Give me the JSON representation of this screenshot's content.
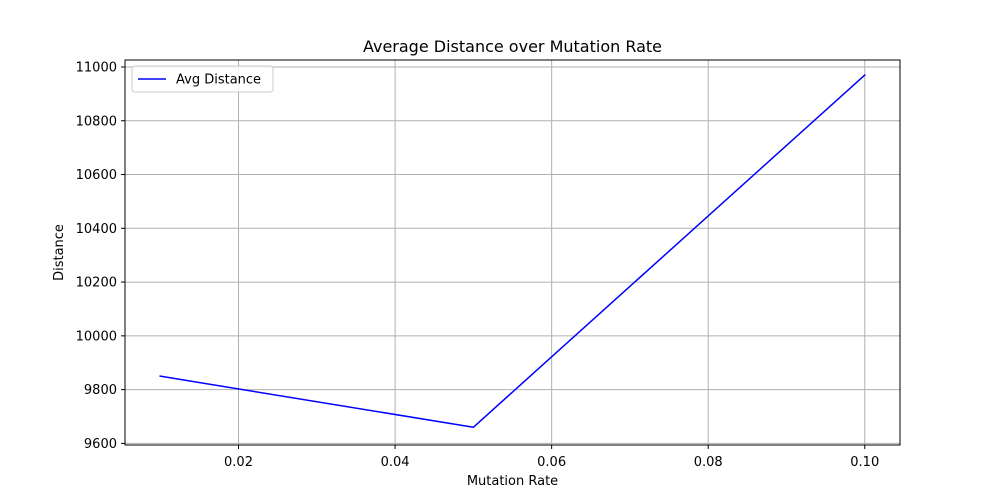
{
  "chart_data": {
    "type": "line",
    "title": "Average Distance over Mutation Rate",
    "xlabel": "Mutation Rate",
    "ylabel": "Distance",
    "xlim": [
      0.0055,
      0.1045
    ],
    "ylim": [
      9594,
      11026
    ],
    "xticks": [
      0.02,
      0.04,
      0.06,
      0.08,
      0.1
    ],
    "xtick_labels": [
      "0.02",
      "0.04",
      "0.06",
      "0.08",
      "0.10"
    ],
    "yticks": [
      9600,
      9800,
      10000,
      10200,
      10400,
      10600,
      10800,
      11000
    ],
    "ytick_labels": [
      "9600",
      "9800",
      "10000",
      "10200",
      "10400",
      "10600",
      "10800",
      "11000"
    ],
    "grid": true,
    "legend_position": "upper-left",
    "series": [
      {
        "name": "Avg Distance",
        "color": "#0000ff",
        "x": [
          0.01,
          0.05,
          0.1
        ],
        "y": [
          9850,
          9660,
          10970
        ]
      }
    ]
  }
}
